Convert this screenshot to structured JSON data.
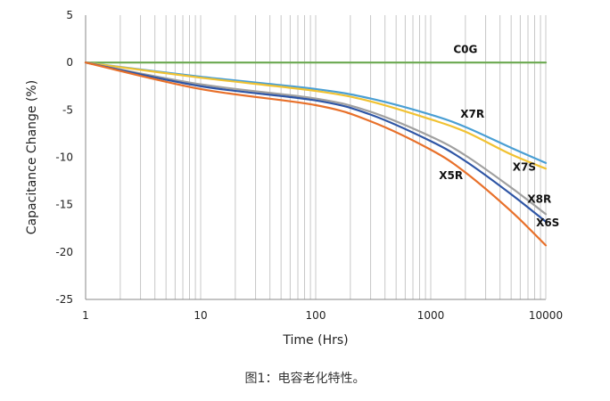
{
  "chart_data": {
    "type": "line",
    "xlabel": "Time  (Hrs)",
    "ylabel": "Capacitance Change (%)",
    "x_scale": "log",
    "xlim": [
      1,
      10000
    ],
    "ylim": [
      -25,
      5
    ],
    "x_ticks": [
      1,
      10,
      100,
      1000,
      10000
    ],
    "x_tick_labels": [
      "1",
      "10",
      "100",
      "1000",
      "10000"
    ],
    "y_ticks": [
      5,
      0,
      -5,
      -10,
      -15,
      -20,
      -25
    ],
    "y_tick_labels": [
      "5",
      "0",
      "-5",
      "-10",
      "-15",
      "-20",
      "-25"
    ],
    "grid": "vertical log gridlines",
    "series": [
      {
        "name": "C0G",
        "color": "#6aa84f",
        "x": [
          1,
          10,
          100,
          1000,
          10000
        ],
        "y": [
          0,
          0,
          0,
          0,
          0
        ]
      },
      {
        "name": "X7R",
        "color": "#4a9fd4",
        "x": [
          1,
          10,
          100,
          300,
          1000,
          2000,
          5000,
          10000
        ],
        "y": [
          0,
          -1.5,
          -2.8,
          -3.8,
          -5.5,
          -6.8,
          -9.0,
          -10.6
        ]
      },
      {
        "name": "X7S",
        "color": "#f1c232",
        "x": [
          1,
          10,
          100,
          300,
          1000,
          2000,
          5000,
          10000
        ],
        "y": [
          0,
          -1.6,
          -3.0,
          -4.1,
          -6.0,
          -7.3,
          -9.7,
          -11.2
        ]
      },
      {
        "name": "X8R",
        "color": "#a0a0a0",
        "x": [
          1,
          10,
          100,
          300,
          1000,
          2000,
          5000,
          10000
        ],
        "y": [
          0,
          -2.3,
          -3.8,
          -5.2,
          -7.8,
          -9.8,
          -13.2,
          -16.0
        ]
      },
      {
        "name": "X6S",
        "color": "#2e55a5",
        "x": [
          1,
          10,
          100,
          300,
          1000,
          2000,
          5000,
          10000
        ],
        "y": [
          0,
          -2.5,
          -4.0,
          -5.5,
          -8.3,
          -10.4,
          -13.9,
          -16.8
        ]
      },
      {
        "name": "X5R",
        "color": "#e8702a",
        "x": [
          1,
          10,
          100,
          300,
          1000,
          2000,
          5000,
          10000
        ],
        "y": [
          0,
          -2.8,
          -4.5,
          -6.2,
          -9.2,
          -11.6,
          -15.7,
          -19.3
        ]
      }
    ]
  },
  "caption": "图1：电容老化特性。"
}
